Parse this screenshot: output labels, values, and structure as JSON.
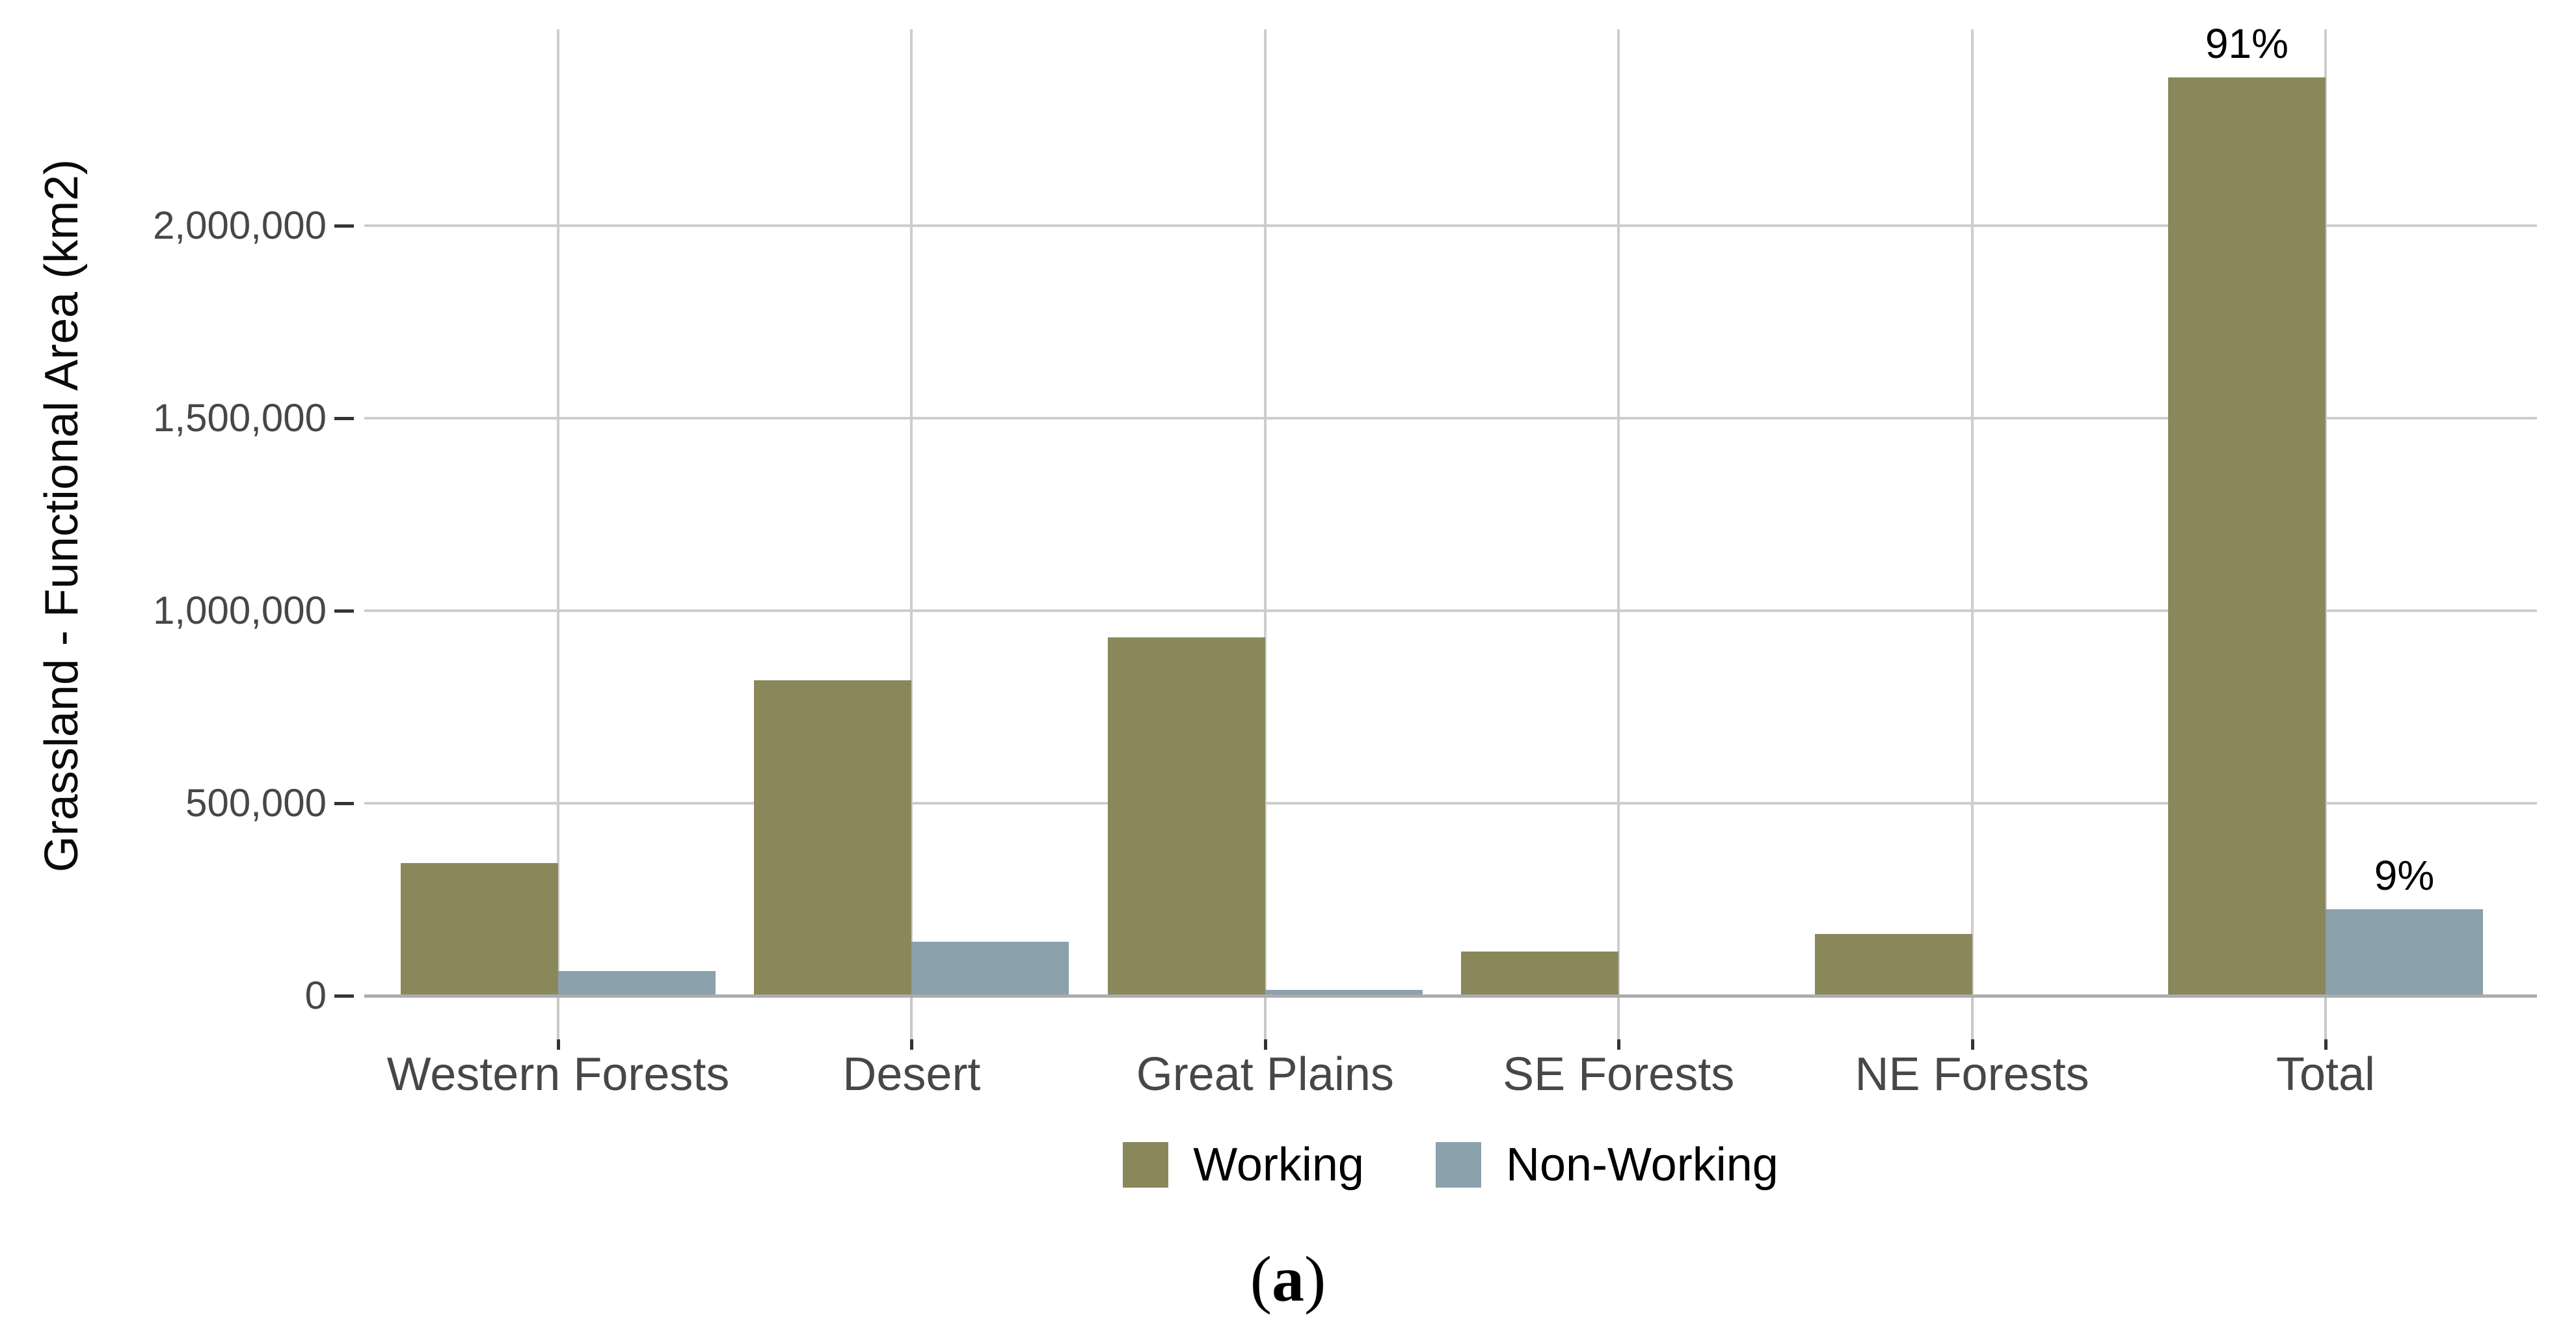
{
  "figure": {
    "caption": {
      "open": "(",
      "letter": "a",
      "close": ")"
    }
  },
  "chart_data": {
    "type": "bar",
    "title": "",
    "xlabel": "",
    "ylabel": "Grassland - Functional Area (km2)",
    "categories": [
      "Western Forests",
      "Desert",
      "Great Plains",
      "SE Forests",
      "NE Forests",
      "Total"
    ],
    "series": [
      {
        "name": "Working",
        "color": "#8A875B",
        "values": [
          345000,
          820000,
          930000,
          115000,
          160000,
          2385000
        ],
        "bar_labels": [
          "",
          "",
          "",
          "",
          "",
          "91%"
        ]
      },
      {
        "name": "Non-Working",
        "color": "#8BA1AB",
        "values": [
          65000,
          140000,
          15000,
          2000,
          3000,
          225000
        ],
        "bar_labels": [
          "",
          "",
          "",
          "",
          "",
          "9%"
        ]
      }
    ],
    "y_tick_labels": [
      "0",
      "500,000",
      "1,000,000",
      "1,500,000",
      "2,000,000"
    ],
    "y_tick_values": [
      0,
      500000,
      1000000,
      1500000,
      2000000
    ],
    "ylim": [
      0,
      2510000
    ],
    "grid": true,
    "legend_position": "bottom",
    "bar_orientation": "vertical",
    "dodged": true
  },
  "colors": {
    "working": "#8A875B",
    "non_working": "#8BA1AB",
    "gridline": "#CDCDCD",
    "axis_line": "#ACACAC",
    "tick_mark": "#333333",
    "axis_text": "#474747",
    "annotation_text": "#000000",
    "background": "#FFFFFF"
  }
}
